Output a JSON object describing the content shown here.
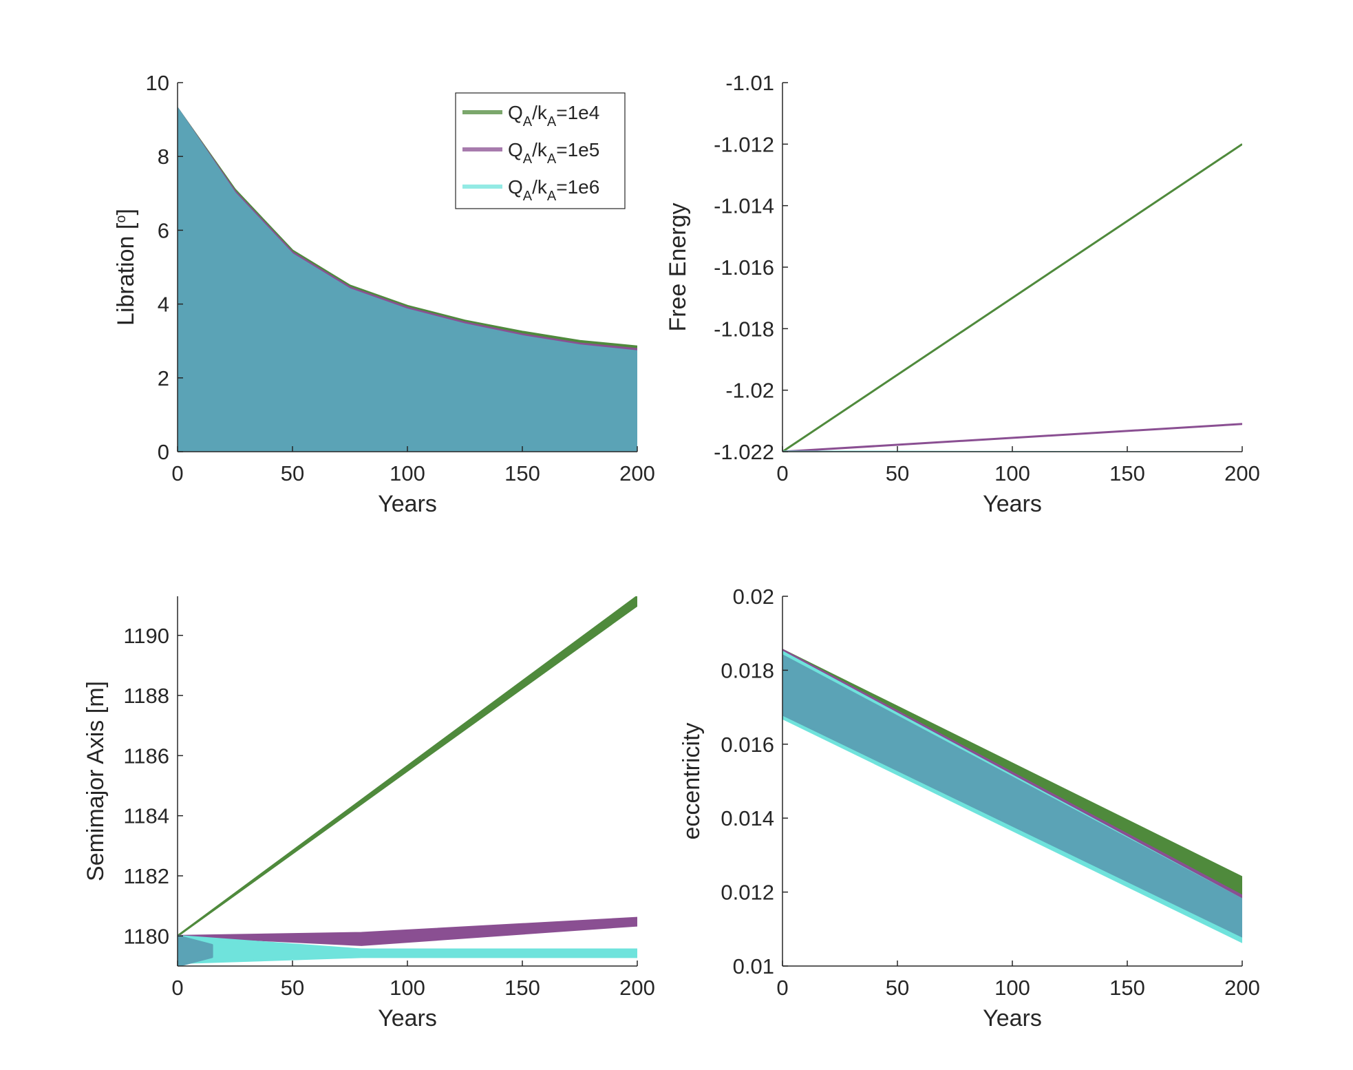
{
  "colors": {
    "green": "#4f8a3c",
    "purple": "#8a4f92",
    "cyan": "#6fe3dc",
    "teal": "#5ba3b6",
    "axis": "#262626"
  },
  "legend": [
    {
      "label_main": "Q",
      "label_sub1": "A",
      "label_mid": "/k",
      "label_sub2": "A",
      "label_value": "=1e4",
      "color_key": "green"
    },
    {
      "label_main": "Q",
      "label_sub1": "A",
      "label_mid": "/k",
      "label_sub2": "A",
      "label_value": "=1e5",
      "color_key": "purple"
    },
    {
      "label_main": "Q",
      "label_sub1": "A",
      "label_mid": "/k",
      "label_sub2": "A",
      "label_value": "=1e6",
      "color_key": "cyan"
    }
  ],
  "chart_data": [
    {
      "type": "area",
      "id": "libration",
      "xlabel": "Years",
      "ylabel_text": "Libration [",
      "ylabel_sup": "o",
      "ylabel_end": "]",
      "xlim": [
        0,
        200
      ],
      "ylim": [
        0,
        10
      ],
      "xticks": [
        0,
        50,
        100,
        150,
        200
      ],
      "yticks": [
        0,
        2,
        4,
        6,
        8,
        10
      ],
      "ytick_labels": [
        "0",
        "2",
        "4",
        "6",
        "8",
        "10"
      ],
      "series": [
        {
          "name": "QA/kA=1e4",
          "color_key": "green",
          "x": [
            0,
            25,
            50,
            75,
            100,
            125,
            150,
            175,
            200
          ],
          "low": [
            0,
            0,
            0,
            0,
            0,
            0,
            0,
            0,
            0
          ],
          "high": [
            9.3,
            7.1,
            5.45,
            4.5,
            3.95,
            3.55,
            3.25,
            3.0,
            2.85
          ]
        },
        {
          "name": "QA/kA=1e5",
          "color_key": "purple",
          "x": [
            0,
            25,
            50,
            75,
            100,
            125,
            150,
            175,
            200
          ],
          "low": [
            0,
            0,
            0,
            0,
            0,
            0,
            0,
            0,
            0
          ],
          "high": [
            9.3,
            7.05,
            5.4,
            4.45,
            3.9,
            3.5,
            3.18,
            2.93,
            2.78
          ]
        },
        {
          "name": "QA/kA=1e6",
          "color_key": "teal",
          "x": [
            0,
            25,
            50,
            75,
            100,
            125,
            150,
            175,
            200
          ],
          "low": [
            0,
            0,
            0,
            0,
            0,
            0,
            0,
            0,
            0
          ],
          "high": [
            9.3,
            7.0,
            5.35,
            4.4,
            3.85,
            3.45,
            3.13,
            2.88,
            2.72
          ]
        }
      ]
    },
    {
      "type": "line",
      "id": "free-energy",
      "xlabel": "Years",
      "ylabel_text": "Free Energy",
      "xlim": [
        0,
        200
      ],
      "ylim": [
        -1.022,
        -1.01
      ],
      "xticks": [
        0,
        50,
        100,
        150,
        200
      ],
      "yticks": [
        -1.022,
        -1.02,
        -1.018,
        -1.016,
        -1.014,
        -1.012,
        -1.01
      ],
      "ytick_labels": [
        "-1.022",
        "-1.02",
        "-1.018",
        "-1.016",
        "-1.014",
        "-1.012",
        "-1.01"
      ],
      "series": [
        {
          "name": "QA/kA=1e4",
          "color_key": "green",
          "x": [
            0,
            200
          ],
          "y": [
            -1.022,
            -1.012
          ]
        },
        {
          "name": "QA/kA=1e5",
          "color_key": "purple",
          "x": [
            0,
            200
          ],
          "y": [
            -1.022,
            -1.0211
          ]
        },
        {
          "name": "QA/kA=1e6",
          "color_key": "cyan",
          "x": [
            0,
            200
          ],
          "y": [
            -1.022,
            -1.02202
          ]
        }
      ]
    },
    {
      "type": "area",
      "id": "semimajor-axis",
      "xlabel": "Years",
      "ylabel_text": "Semimajor Axis [m]",
      "xlim": [
        0,
        200
      ],
      "ylim": [
        1179,
        1191.3
      ],
      "xticks": [
        0,
        50,
        100,
        150,
        200
      ],
      "yticks": [
        1180,
        1182,
        1184,
        1186,
        1188,
        1190
      ],
      "ytick_labels": [
        "1180",
        "1182",
        "1184",
        "1186",
        "1188",
        "1190"
      ],
      "series": [
        {
          "name": "QA/kA=1e4",
          "color_key": "green",
          "x": [
            0,
            200
          ],
          "low": [
            1180.0,
            1191.0
          ],
          "high": [
            1180.0,
            1191.3
          ]
        },
        {
          "name": "QA/kA=1e5",
          "color_key": "purple",
          "x": [
            0,
            80,
            200
          ],
          "low": [
            1180.0,
            1179.7,
            1180.35
          ],
          "high": [
            1180.0,
            1180.1,
            1180.6
          ]
        },
        {
          "name": "QA/kA=1e6",
          "color_key": "cyan",
          "x": [
            0,
            80,
            200
          ],
          "low": [
            1179.1,
            1179.3,
            1179.3
          ],
          "high": [
            1180.0,
            1179.55,
            1179.55
          ]
        },
        {
          "name": "QA/kA=1e6-band",
          "color_key": "teal",
          "x": [
            0,
            15
          ],
          "low": [
            1179.0,
            1179.3
          ],
          "high": [
            1180.0,
            1179.7
          ]
        }
      ]
    },
    {
      "type": "area",
      "id": "eccentricity",
      "xlabel": "Years",
      "ylabel_text": "eccentricity",
      "xlim": [
        0,
        200
      ],
      "ylim": [
        0.01,
        0.02
      ],
      "xticks": [
        0,
        50,
        100,
        150,
        200
      ],
      "yticks": [
        0.01,
        0.012,
        0.014,
        0.016,
        0.018,
        0.02
      ],
      "ytick_labels": [
        "0.01",
        "0.012",
        "0.014",
        "0.016",
        "0.018",
        "0.02"
      ],
      "series": [
        {
          "name": "QA/kA=1e4",
          "color_key": "green",
          "x": [
            0,
            200
          ],
          "low": [
            0.0168,
            0.0109
          ],
          "high": [
            0.01855,
            0.0124
          ]
        },
        {
          "name": "QA/kA=1e5",
          "color_key": "purple",
          "x": [
            0,
            200
          ],
          "low": [
            0.0168,
            0.0108
          ],
          "high": [
            0.01855,
            0.0119
          ]
        },
        {
          "name": "QA/kA=1e6",
          "color_key": "cyan",
          "x": [
            0,
            200
          ],
          "low": [
            0.0167,
            0.01065
          ],
          "high": [
            0.0185,
            0.0118
          ]
        },
        {
          "name": "QA/kA=1e6-band",
          "color_key": "teal",
          "x": [
            0,
            200
          ],
          "low": [
            0.0168,
            0.0108
          ],
          "high": [
            0.0184,
            0.0118
          ]
        }
      ]
    }
  ]
}
